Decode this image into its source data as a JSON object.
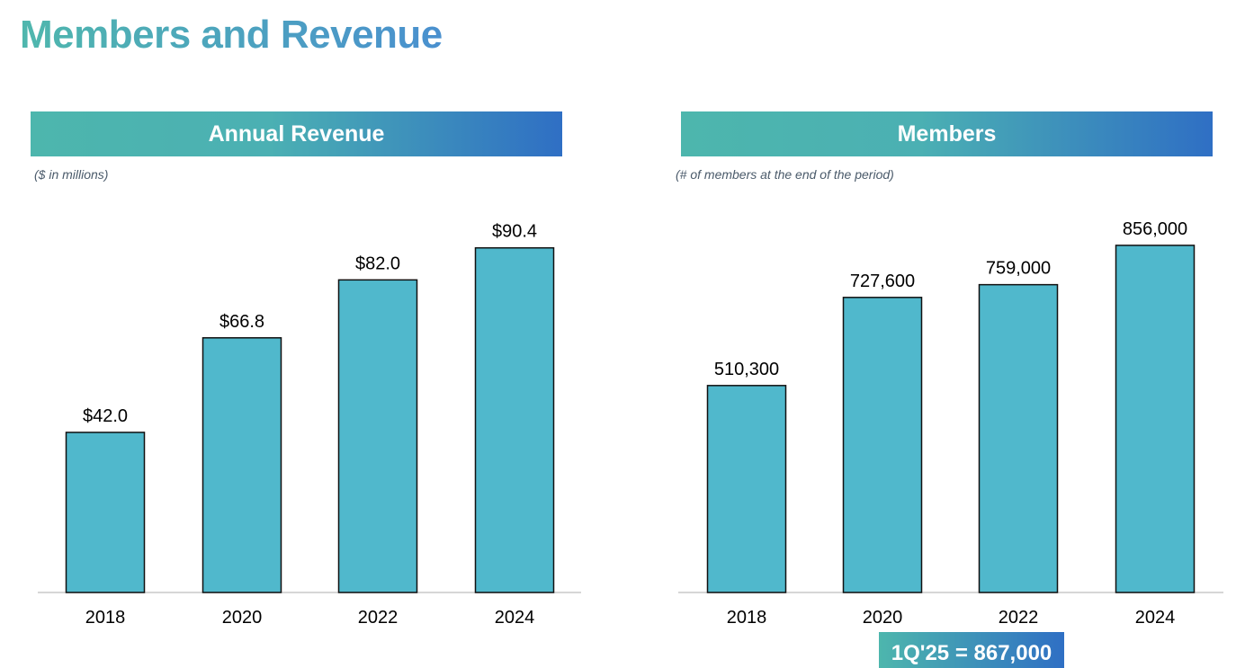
{
  "page": {
    "title": "Members and Revenue"
  },
  "callout": {
    "text": "1Q'25 = 867,000"
  },
  "chart_data": [
    {
      "type": "bar",
      "title": "Annual Revenue",
      "subtitle": "($ in millions)",
      "categories": [
        "2018",
        "2020",
        "2022",
        "2024"
      ],
      "values": [
        42.0,
        66.8,
        82.0,
        90.4
      ],
      "labels": [
        "$42.0",
        "$66.8",
        "$82.0",
        "$90.4"
      ],
      "ylim": [
        0,
        100
      ],
      "xlabel": "",
      "ylabel": "",
      "bar_color": "#50b8cc"
    },
    {
      "type": "bar",
      "title": "Members",
      "subtitle": "(# of members at the end of the period)",
      "categories": [
        "2018",
        "2020",
        "2022",
        "2024"
      ],
      "values": [
        510300,
        727600,
        759000,
        856000
      ],
      "labels": [
        "510,300",
        "727,600",
        "759,000",
        "856,000"
      ],
      "ylim": [
        0,
        940000
      ],
      "xlabel": "",
      "ylabel": "",
      "bar_color": "#50b8cc"
    }
  ]
}
